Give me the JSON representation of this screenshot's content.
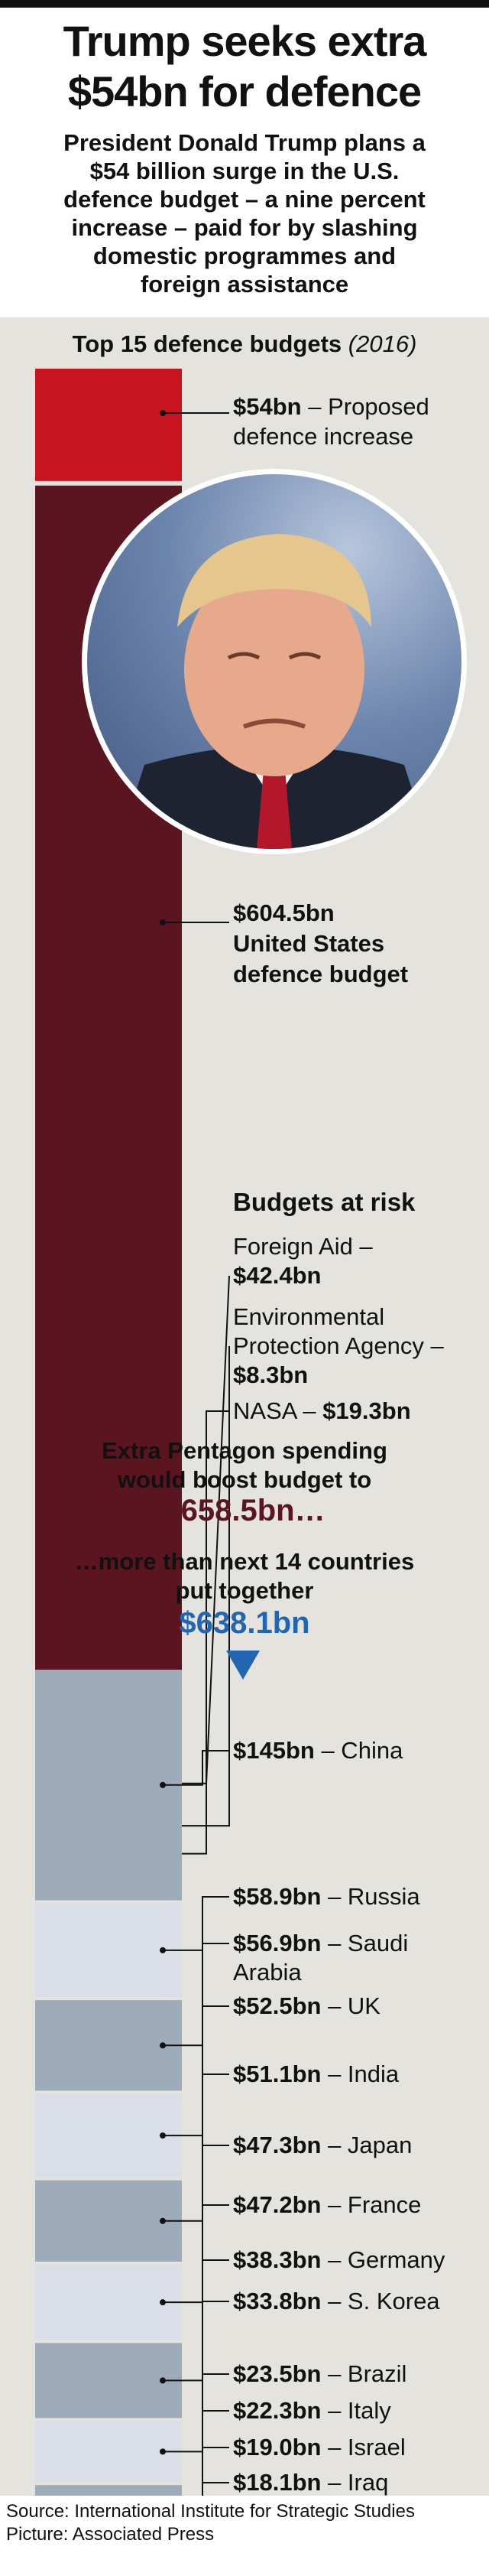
{
  "headline": [
    "Trump seeks extra",
    "$54bn for defence"
  ],
  "standfirst": [
    "President Donald Trump plans a",
    "$54 billion surge in the U.S.",
    "defence budget – a nine percent",
    "increase – paid for by slashing",
    "domestic programmes and",
    "foreign assistance"
  ],
  "subtitle_main": "Top 15 defence budgets",
  "subtitle_year": "(2016)",
  "us_labels": {
    "increase_value": "$54bn",
    "increase_text": " – Proposed",
    "increase_text2": "defence increase",
    "budget_value": "$604.5bn",
    "budget_line2": "United States",
    "budget_line3": "defence budget"
  },
  "budgets_at_risk": {
    "title": "Budgets at risk",
    "foreign_aid_text": "Foreign Aid –",
    "foreign_aid_value": "$42.4bn",
    "epa_text1": "Environmental",
    "epa_text2": "Protection Agency –",
    "epa_value": "$8.3bn",
    "nasa_text": "NASA – ",
    "nasa_value": "$19.3bn"
  },
  "pentagon": {
    "line1": "Extra Pentagon spending",
    "line2": "would boost budget to",
    "total": "$658.5bn…"
  },
  "others": {
    "line1": "…more than next 14 countries",
    "line2": "put together",
    "total": "$638.1bn"
  },
  "source": "Source: International Institute for Strategic Studies",
  "picture": "Picture: Associated Press",
  "colors": {
    "increase": "#c8141e",
    "us_budget": "#5a1520",
    "at_risk": "#1f63ae",
    "country_dark": "#9eabb9",
    "country_light": "#d9dee7"
  },
  "chart_data": [
    {
      "type": "bar",
      "title": "Top 15 defence budgets (2016)",
      "series": [
        {
          "name": "United States",
          "categories": [
            "Proposed defence increase",
            "United States defence budget"
          ],
          "values": [
            54,
            604.5
          ]
        }
      ],
      "budgets_at_risk": {
        "categories": [
          "Foreign Aid",
          "Environmental Protection Agency",
          "NASA"
        ],
        "values": [
          42.4,
          8.3,
          19.3
        ]
      },
      "totals": {
        "proposed_us": 658.5,
        "next_14_combined": 638.1
      },
      "unit": "$bn"
    },
    {
      "type": "bar",
      "categories": [
        "China",
        "Russia",
        "Saudi Arabia",
        "UK",
        "India",
        "Japan",
        "France",
        "Germany",
        "S. Korea",
        "Brazil",
        "Italy",
        "Israel",
        "Iraq"
      ],
      "values": [
        145,
        58.9,
        56.9,
        52.5,
        51.1,
        47.3,
        47.2,
        38.3,
        33.8,
        23.5,
        22.3,
        19.0,
        18.1
      ],
      "unlabeled_segments": 1,
      "value_labels": [
        "$145bn",
        "$58.9bn",
        "$56.9bn",
        "$52.5bn",
        "$51.1bn",
        "$47.3bn",
        "$47.2bn",
        "$38.3bn",
        "$33.8bn",
        "$23.5bn",
        "$22.3bn",
        "$19.0bn",
        "$18.1bn"
      ],
      "country_labels": [
        "China",
        "Russia",
        "Saudi",
        "UK",
        "India",
        "Japan",
        "France",
        "Germany",
        "S. Korea",
        "Brazil",
        "Italy",
        "Israel",
        "Iraq"
      ],
      "country_label_extra": {
        "Saudi": "Arabia"
      },
      "unit": "$bn"
    }
  ]
}
